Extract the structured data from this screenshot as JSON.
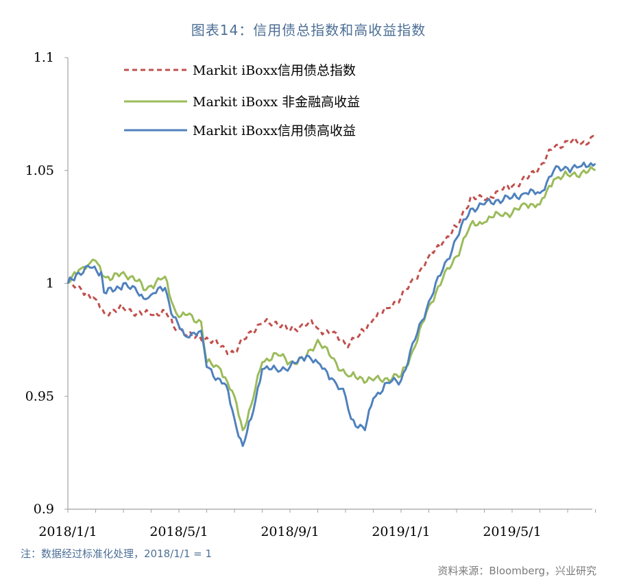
{
  "header": {
    "title": "图表14：信用债总指数和高收益指数"
  },
  "footer": {
    "note": "注：数据经过标准化处理，2018/1/1 = 1",
    "source": "资料来源：Bloomberg，兴业研究"
  },
  "colors": {
    "total": "#c0504d",
    "nonfin": "#9bbb59",
    "hy": "#4f81bd",
    "axis": "#a0a0a0"
  },
  "chart_data": {
    "type": "line",
    "title": "图表14：信用债总指数和高收益指数",
    "xlabel": "",
    "ylabel": "",
    "ylim": [
      0.9,
      1.1
    ],
    "yticks": [
      "0.9",
      "0.95",
      "1",
      "1.05",
      "1.1"
    ],
    "xticks": [
      "2018/1/1",
      "2018/5/1",
      "2018/9/1",
      "2019/1/1",
      "2019/5/1"
    ],
    "x_months": [
      0,
      1,
      2,
      3,
      4,
      5,
      6,
      7,
      8,
      9,
      10,
      11,
      12,
      13,
      14,
      15,
      16,
      17,
      18,
      19
    ],
    "series": [
      {
        "name": "Markit iBoxx信用债总指数",
        "style": "dashed",
        "points": [
          [
            0,
            1.0
          ],
          [
            0.5,
            0.997
          ],
          [
            1,
            0.993
          ],
          [
            1.3,
            0.987
          ],
          [
            2,
            0.989
          ],
          [
            2.5,
            0.987
          ],
          [
            3,
            0.986
          ],
          [
            3.5,
            0.988
          ],
          [
            3.8,
            0.981
          ],
          [
            4,
            0.98
          ],
          [
            4.5,
            0.976
          ],
          [
            5,
            0.976
          ],
          [
            5.5,
            0.972
          ],
          [
            6,
            0.969
          ],
          [
            6.5,
            0.978
          ],
          [
            7,
            0.982
          ],
          [
            7.5,
            0.983
          ],
          [
            8,
            0.979
          ],
          [
            8.7,
            0.983
          ],
          [
            9,
            0.98
          ],
          [
            9.5,
            0.978
          ],
          [
            10,
            0.973
          ],
          [
            10.5,
            0.977
          ],
          [
            11,
            0.984
          ],
          [
            11.5,
            0.989
          ],
          [
            12,
            0.994
          ],
          [
            12.5,
            1.002
          ],
          [
            13,
            1.012
          ],
          [
            13.5,
            1.018
          ],
          [
            14,
            1.025
          ],
          [
            14.5,
            1.038
          ],
          [
            15,
            1.037
          ],
          [
            15.5,
            1.041
          ],
          [
            16,
            1.043
          ],
          [
            16.5,
            1.046
          ],
          [
            17,
            1.052
          ],
          [
            17.5,
            1.06
          ],
          [
            18,
            1.063
          ],
          [
            18.5,
            1.062
          ],
          [
            19,
            1.065
          ]
        ]
      },
      {
        "name": "Markit iBoxx 非金融高收益",
        "style": "solid",
        "points": [
          [
            0,
            1.0
          ],
          [
            0.4,
            1.006
          ],
          [
            0.8,
            1.009
          ],
          [
            1.0,
            1.01
          ],
          [
            1.3,
            1.003
          ],
          [
            1.6,
            1.002
          ],
          [
            2,
            1.005
          ],
          [
            2.5,
            1.001
          ],
          [
            2.8,
            0.997
          ],
          [
            3,
            0.999
          ],
          [
            3.5,
            1.003
          ],
          [
            3.8,
            0.99
          ],
          [
            4,
            0.985
          ],
          [
            4.3,
            0.986
          ],
          [
            4.8,
            0.983
          ],
          [
            5,
            0.965
          ],
          [
            5.5,
            0.962
          ],
          [
            6,
            0.95
          ],
          [
            6.3,
            0.935
          ],
          [
            6.6,
            0.946
          ],
          [
            7,
            0.965
          ],
          [
            7.5,
            0.969
          ],
          [
            8,
            0.965
          ],
          [
            8.5,
            0.966
          ],
          [
            9,
            0.975
          ],
          [
            9.5,
            0.967
          ],
          [
            10,
            0.96
          ],
          [
            10.2,
            0.959
          ],
          [
            11,
            0.957
          ],
          [
            11.5,
            0.958
          ],
          [
            12,
            0.959
          ],
          [
            12.5,
            0.972
          ],
          [
            13,
            0.99
          ],
          [
            13.5,
            1.002
          ],
          [
            14,
            1.012
          ],
          [
            14.5,
            1.026
          ],
          [
            15,
            1.027
          ],
          [
            15.5,
            1.031
          ],
          [
            16,
            1.031
          ],
          [
            16.5,
            1.035
          ],
          [
            17,
            1.035
          ],
          [
            17.5,
            1.046
          ],
          [
            18,
            1.048
          ],
          [
            18.5,
            1.049
          ],
          [
            19,
            1.05
          ]
        ]
      },
      {
        "name": "Markit iBoxx信用债高收益",
        "style": "solid",
        "points": [
          [
            0,
            1.0
          ],
          [
            0.3,
            1.004
          ],
          [
            0.8,
            1.007
          ],
          [
            1.2,
            1.005
          ],
          [
            1.3,
            0.996
          ],
          [
            1.7,
            0.997
          ],
          [
            2,
            1.0
          ],
          [
            2.5,
            0.996
          ],
          [
            2.8,
            0.993
          ],
          [
            3,
            0.995
          ],
          [
            3.5,
            0.998
          ],
          [
            3.8,
            0.985
          ],
          [
            4.2,
            0.977
          ],
          [
            4.8,
            0.979
          ],
          [
            5,
            0.963
          ],
          [
            5.4,
            0.958
          ],
          [
            5.7,
            0.955
          ],
          [
            6,
            0.94
          ],
          [
            6.3,
            0.928
          ],
          [
            6.6,
            0.94
          ],
          [
            7,
            0.962
          ],
          [
            7.5,
            0.962
          ],
          [
            8,
            0.963
          ],
          [
            8.6,
            0.968
          ],
          [
            9,
            0.965
          ],
          [
            9.5,
            0.958
          ],
          [
            10,
            0.95
          ],
          [
            10.2,
            0.94
          ],
          [
            10.7,
            0.935
          ],
          [
            11,
            0.949
          ],
          [
            11.5,
            0.956
          ],
          [
            12,
            0.957
          ],
          [
            12.5,
            0.975
          ],
          [
            13,
            0.992
          ],
          [
            13.5,
            1.006
          ],
          [
            14,
            1.02
          ],
          [
            14.5,
            1.033
          ],
          [
            15,
            1.035
          ],
          [
            15.5,
            1.037
          ],
          [
            16,
            1.038
          ],
          [
            16.5,
            1.04
          ],
          [
            17,
            1.04
          ],
          [
            17.5,
            1.05
          ],
          [
            18,
            1.051
          ],
          [
            18.5,
            1.052
          ],
          [
            19,
            1.053
          ]
        ]
      }
    ]
  }
}
